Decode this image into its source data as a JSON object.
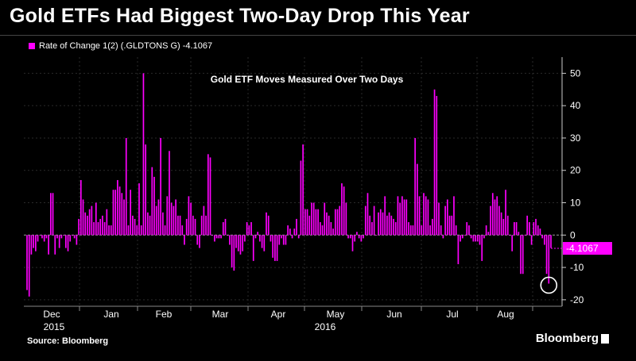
{
  "title": "Gold ETFs Had Biggest Two-Day Drop This Year",
  "legend": {
    "label": "Rate of Change 1(2) (.GLDTONS G) -4.1067"
  },
  "annotation": "Gold ETF Moves Measured Over Two Days",
  "last_value_label": "-4.1067",
  "source": "Source: Bloomberg",
  "brand": "Bloomberg",
  "colors": {
    "bar": "#ff00ff",
    "background": "#000000",
    "text": "#ffffff"
  },
  "chart_data": {
    "type": "bar",
    "title": "Gold ETF Moves Measured Over Two Days",
    "y_axis": {
      "position": "right",
      "range": [
        -22,
        55
      ],
      "ticks": [
        50,
        40,
        30,
        20,
        10,
        0,
        -10,
        -20
      ]
    },
    "x_axis": {
      "month_labels": [
        "Dec",
        "Jan",
        "Feb",
        "Mar",
        "Apr",
        "May",
        "Jun",
        "Jul",
        "Aug"
      ],
      "year_labels": [
        "2015",
        "2016"
      ]
    },
    "grid": true,
    "series": [
      {
        "values": [
          -17,
          -19,
          -6,
          -4,
          -5,
          -2,
          0,
          -1,
          -2,
          -1,
          -6,
          13,
          13,
          -6,
          -1,
          -4,
          -1,
          0,
          -4,
          -5,
          -2,
          0,
          -1,
          -3,
          5,
          17,
          11,
          7,
          6,
          8,
          9,
          4,
          10,
          4,
          5,
          6,
          4,
          8,
          3,
          3,
          14,
          14,
          17,
          15,
          13,
          11,
          30,
          3,
          14,
          6,
          5,
          3,
          16,
          3,
          50,
          28,
          7,
          6,
          21,
          18,
          9,
          11,
          30,
          7,
          3,
          12,
          26,
          10,
          9,
          11,
          6,
          6,
          3,
          -3,
          5,
          12,
          10,
          6,
          5,
          -3,
          -4,
          6,
          9,
          6,
          25,
          24,
          0,
          -2,
          -1,
          -1,
          -1,
          4,
          5,
          0,
          -3,
          -10,
          -11,
          -4,
          -5,
          -6,
          -5,
          -2,
          4,
          3,
          4,
          -8,
          -1,
          1,
          -2,
          -4,
          -5,
          7,
          6,
          -2,
          -7,
          -8,
          -8,
          -3,
          -1,
          -3,
          -3,
          3,
          2,
          -1,
          2,
          5,
          -1,
          23,
          28,
          8,
          8,
          6,
          10,
          10,
          8,
          8,
          4,
          3,
          10,
          7,
          6,
          4,
          2,
          8,
          8,
          9,
          16,
          15,
          10,
          -1,
          -1,
          -5,
          -2,
          1,
          -1,
          -2,
          -1,
          9,
          13,
          6,
          4,
          9,
          0,
          7,
          8,
          7,
          12,
          6,
          7,
          6,
          5,
          4,
          12,
          10,
          12,
          11,
          11,
          4,
          3,
          3,
          30,
          22,
          12,
          3,
          13,
          12,
          11,
          3,
          5,
          45,
          43,
          10,
          3,
          -1,
          9,
          11,
          6,
          6,
          12,
          3,
          -9,
          -2,
          -1,
          0,
          4,
          3,
          -1,
          -2,
          -2,
          -2,
          -3,
          -8,
          -1,
          3,
          1,
          9,
          13,
          11,
          12,
          9,
          7,
          5,
          14,
          6,
          0,
          -5,
          4,
          4,
          1,
          -12,
          -12,
          0,
          6,
          4,
          -3,
          4,
          5,
          3,
          2,
          -1,
          -3,
          -12,
          -15,
          -4
        ]
      }
    ]
  }
}
